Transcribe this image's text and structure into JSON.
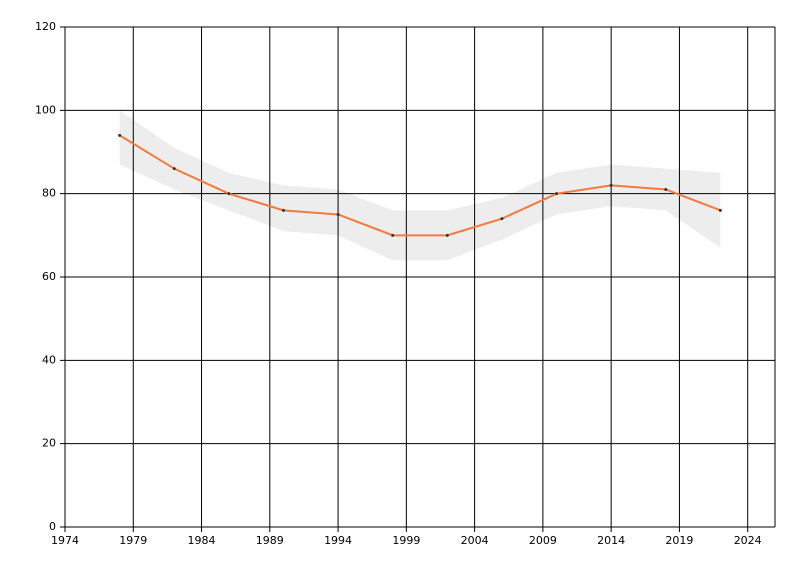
{
  "chart_data": {
    "type": "line",
    "x": [
      1978,
      1982,
      1986,
      1990,
      1994,
      1998,
      2002,
      2006,
      2010,
      2014,
      2018,
      2022
    ],
    "series": [
      {
        "color": "#f47a3c",
        "band_color": "#ededed",
        "values": [
          94,
          86,
          80,
          76,
          75,
          70,
          70,
          74,
          80,
          82,
          81,
          76
        ],
        "upper": [
          100,
          91,
          85,
          82,
          81,
          76,
          76,
          79,
          85,
          87,
          86,
          85
        ],
        "lower": [
          87,
          81,
          76,
          71,
          70,
          64,
          64,
          69,
          75,
          77,
          76,
          67
        ]
      }
    ],
    "xlim": [
      1974,
      2026
    ],
    "xticks": [
      1974,
      1979,
      1984,
      1989,
      1994,
      1999,
      2004,
      2009,
      2014,
      2019,
      2024
    ],
    "ylim": [
      0,
      120
    ],
    "yticks": [
      0,
      20,
      40,
      60,
      80,
      100,
      120
    ],
    "grid": true
  }
}
